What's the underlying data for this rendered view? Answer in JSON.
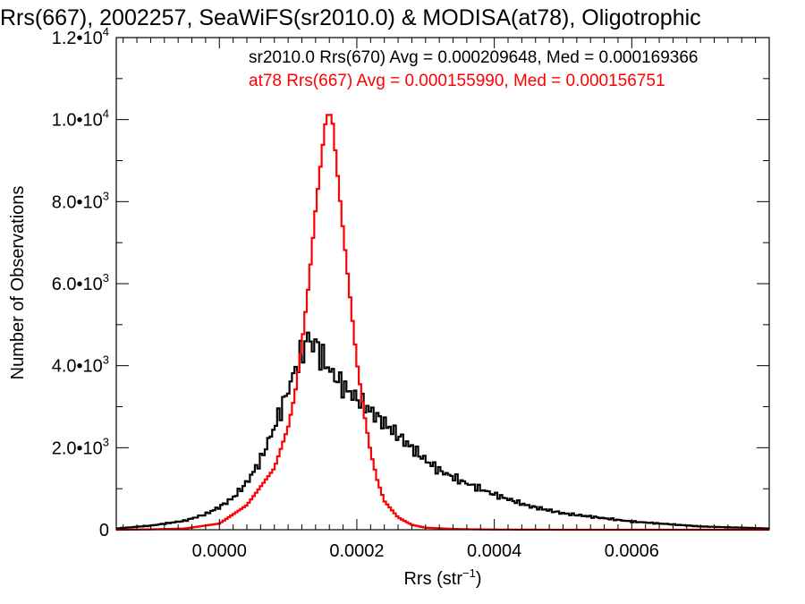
{
  "chart_data": {
    "type": "line",
    "title": "Rrs(667), 2002257, SeaWiFS(sr2010.0) & MODISA(at78), Oligotrophic",
    "xlabel": "Rrs (str⁻¹)",
    "ylabel": "Number of Observations",
    "xlim": [
      -0.00015,
      0.0008
    ],
    "ylim": [
      0,
      12000
    ],
    "grid": false,
    "x_ticks": [
      {
        "value": 0.0,
        "label": "0.0000"
      },
      {
        "value": 0.0002,
        "label": "0.0002"
      },
      {
        "value": 0.0004,
        "label": "0.0004"
      },
      {
        "value": 0.0006,
        "label": "0.0006"
      }
    ],
    "y_ticks": [
      {
        "value": 0,
        "mantissa": "0",
        "exp": ""
      },
      {
        "value": 2000,
        "mantissa": "2.0•10",
        "exp": "3"
      },
      {
        "value": 4000,
        "mantissa": "4.0•10",
        "exp": "3"
      },
      {
        "value": 6000,
        "mantissa": "6.0•10",
        "exp": "3"
      },
      {
        "value": 8000,
        "mantissa": "8.0•10",
        "exp": "3"
      },
      {
        "value": 10000,
        "mantissa": "1.0•10",
        "exp": "4"
      },
      {
        "value": 12000,
        "mantissa": "1.2•10",
        "exp": "4"
      }
    ],
    "annotations": [
      {
        "text": "sr2010.0 Rrs(670) Avg = 0.000209648, Med = 0.000169366",
        "color": "#000000"
      },
      {
        "text": "at78 Rrs(667) Avg = 0.000155990, Med = 0.000156751",
        "color": "#ff0000"
      }
    ],
    "series": [
      {
        "color": "#000000",
        "x": [
          -0.00015,
          -0.0001,
          -5e-05,
          -2e-05,
          0.0,
          2e-05,
          4e-05,
          6e-05,
          8e-05,
          0.0001,
          0.00011,
          0.00012,
          0.000125,
          0.00013,
          0.000135,
          0.00014,
          0.000145,
          0.00015,
          0.00016,
          0.00017,
          0.00018,
          0.0002,
          0.00022,
          0.00024,
          0.00026,
          0.00028,
          0.0003,
          0.00032,
          0.00035,
          0.0004,
          0.00045,
          0.0005,
          0.0006,
          0.0007,
          0.0008
        ],
        "y": [
          30,
          100,
          220,
          380,
          550,
          780,
          1150,
          1700,
          2500,
          3400,
          3900,
          4300,
          4500,
          4800,
          4400,
          4600,
          4300,
          4200,
          3900,
          3700,
          3500,
          3200,
          2900,
          2600,
          2300,
          2000,
          1700,
          1450,
          1200,
          860,
          580,
          400,
          200,
          80,
          30
        ]
      },
      {
        "color": "#ff0000",
        "x": [
          -0.00015,
          -0.0001,
          -5e-05,
          0.0,
          4e-05,
          8e-05,
          0.0001,
          0.00011,
          0.00012,
          0.00013,
          0.00014,
          0.00015,
          0.000155,
          0.00016,
          0.000165,
          0.00017,
          0.00018,
          0.00019,
          0.0002,
          0.00021,
          0.00022,
          0.00023,
          0.00024,
          0.00026,
          0.00028,
          0.0003,
          0.00035,
          0.0004,
          0.0005,
          0.0008
        ],
        "y": [
          0,
          10,
          30,
          150,
          600,
          1500,
          2500,
          3300,
          4500,
          6000,
          7800,
          9300,
          10000,
          10200,
          9900,
          9000,
          7300,
          5700,
          4100,
          2900,
          1900,
          1200,
          700,
          300,
          120,
          50,
          15,
          5,
          0,
          0
        ]
      }
    ]
  }
}
